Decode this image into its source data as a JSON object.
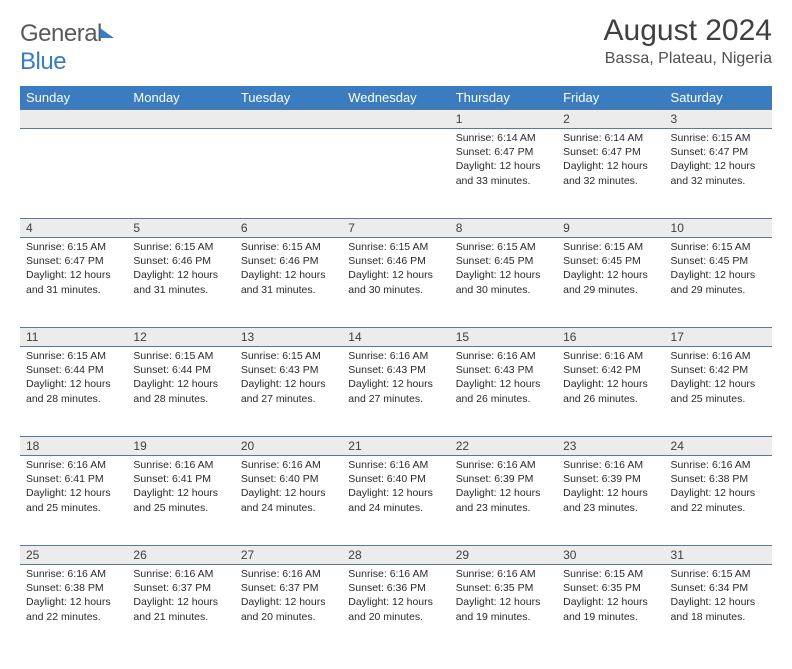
{
  "brand": {
    "part1": "General",
    "part2": "Blue"
  },
  "title": "August 2024",
  "location": "Bassa, Plateau, Nigeria",
  "colors": {
    "header_bg": "#3b7bbf",
    "header_text": "#ffffff",
    "daynum_bg": "#ececec",
    "border": "#5a7a9a",
    "text": "#2a2a2a"
  },
  "day_labels": [
    "Sunday",
    "Monday",
    "Tuesday",
    "Wednesday",
    "Thursday",
    "Friday",
    "Saturday"
  ],
  "weeks": [
    [
      null,
      null,
      null,
      null,
      {
        "n": "1",
        "sr": "6:14 AM",
        "ss": "6:47 PM",
        "dl": "12 hours and 33 minutes."
      },
      {
        "n": "2",
        "sr": "6:14 AM",
        "ss": "6:47 PM",
        "dl": "12 hours and 32 minutes."
      },
      {
        "n": "3",
        "sr": "6:15 AM",
        "ss": "6:47 PM",
        "dl": "12 hours and 32 minutes."
      }
    ],
    [
      {
        "n": "4",
        "sr": "6:15 AM",
        "ss": "6:47 PM",
        "dl": "12 hours and 31 minutes."
      },
      {
        "n": "5",
        "sr": "6:15 AM",
        "ss": "6:46 PM",
        "dl": "12 hours and 31 minutes."
      },
      {
        "n": "6",
        "sr": "6:15 AM",
        "ss": "6:46 PM",
        "dl": "12 hours and 31 minutes."
      },
      {
        "n": "7",
        "sr": "6:15 AM",
        "ss": "6:46 PM",
        "dl": "12 hours and 30 minutes."
      },
      {
        "n": "8",
        "sr": "6:15 AM",
        "ss": "6:45 PM",
        "dl": "12 hours and 30 minutes."
      },
      {
        "n": "9",
        "sr": "6:15 AM",
        "ss": "6:45 PM",
        "dl": "12 hours and 29 minutes."
      },
      {
        "n": "10",
        "sr": "6:15 AM",
        "ss": "6:45 PM",
        "dl": "12 hours and 29 minutes."
      }
    ],
    [
      {
        "n": "11",
        "sr": "6:15 AM",
        "ss": "6:44 PM",
        "dl": "12 hours and 28 minutes."
      },
      {
        "n": "12",
        "sr": "6:15 AM",
        "ss": "6:44 PM",
        "dl": "12 hours and 28 minutes."
      },
      {
        "n": "13",
        "sr": "6:15 AM",
        "ss": "6:43 PM",
        "dl": "12 hours and 27 minutes."
      },
      {
        "n": "14",
        "sr": "6:16 AM",
        "ss": "6:43 PM",
        "dl": "12 hours and 27 minutes."
      },
      {
        "n": "15",
        "sr": "6:16 AM",
        "ss": "6:43 PM",
        "dl": "12 hours and 26 minutes."
      },
      {
        "n": "16",
        "sr": "6:16 AM",
        "ss": "6:42 PM",
        "dl": "12 hours and 26 minutes."
      },
      {
        "n": "17",
        "sr": "6:16 AM",
        "ss": "6:42 PM",
        "dl": "12 hours and 25 minutes."
      }
    ],
    [
      {
        "n": "18",
        "sr": "6:16 AM",
        "ss": "6:41 PM",
        "dl": "12 hours and 25 minutes."
      },
      {
        "n": "19",
        "sr": "6:16 AM",
        "ss": "6:41 PM",
        "dl": "12 hours and 25 minutes."
      },
      {
        "n": "20",
        "sr": "6:16 AM",
        "ss": "6:40 PM",
        "dl": "12 hours and 24 minutes."
      },
      {
        "n": "21",
        "sr": "6:16 AM",
        "ss": "6:40 PM",
        "dl": "12 hours and 24 minutes."
      },
      {
        "n": "22",
        "sr": "6:16 AM",
        "ss": "6:39 PM",
        "dl": "12 hours and 23 minutes."
      },
      {
        "n": "23",
        "sr": "6:16 AM",
        "ss": "6:39 PM",
        "dl": "12 hours and 23 minutes."
      },
      {
        "n": "24",
        "sr": "6:16 AM",
        "ss": "6:38 PM",
        "dl": "12 hours and 22 minutes."
      }
    ],
    [
      {
        "n": "25",
        "sr": "6:16 AM",
        "ss": "6:38 PM",
        "dl": "12 hours and 22 minutes."
      },
      {
        "n": "26",
        "sr": "6:16 AM",
        "ss": "6:37 PM",
        "dl": "12 hours and 21 minutes."
      },
      {
        "n": "27",
        "sr": "6:16 AM",
        "ss": "6:37 PM",
        "dl": "12 hours and 20 minutes."
      },
      {
        "n": "28",
        "sr": "6:16 AM",
        "ss": "6:36 PM",
        "dl": "12 hours and 20 minutes."
      },
      {
        "n": "29",
        "sr": "6:16 AM",
        "ss": "6:35 PM",
        "dl": "12 hours and 19 minutes."
      },
      {
        "n": "30",
        "sr": "6:15 AM",
        "ss": "6:35 PM",
        "dl": "12 hours and 19 minutes."
      },
      {
        "n": "31",
        "sr": "6:15 AM",
        "ss": "6:34 PM",
        "dl": "12 hours and 18 minutes."
      }
    ]
  ],
  "labels": {
    "sunrise": "Sunrise:",
    "sunset": "Sunset:",
    "daylight": "Daylight:"
  }
}
